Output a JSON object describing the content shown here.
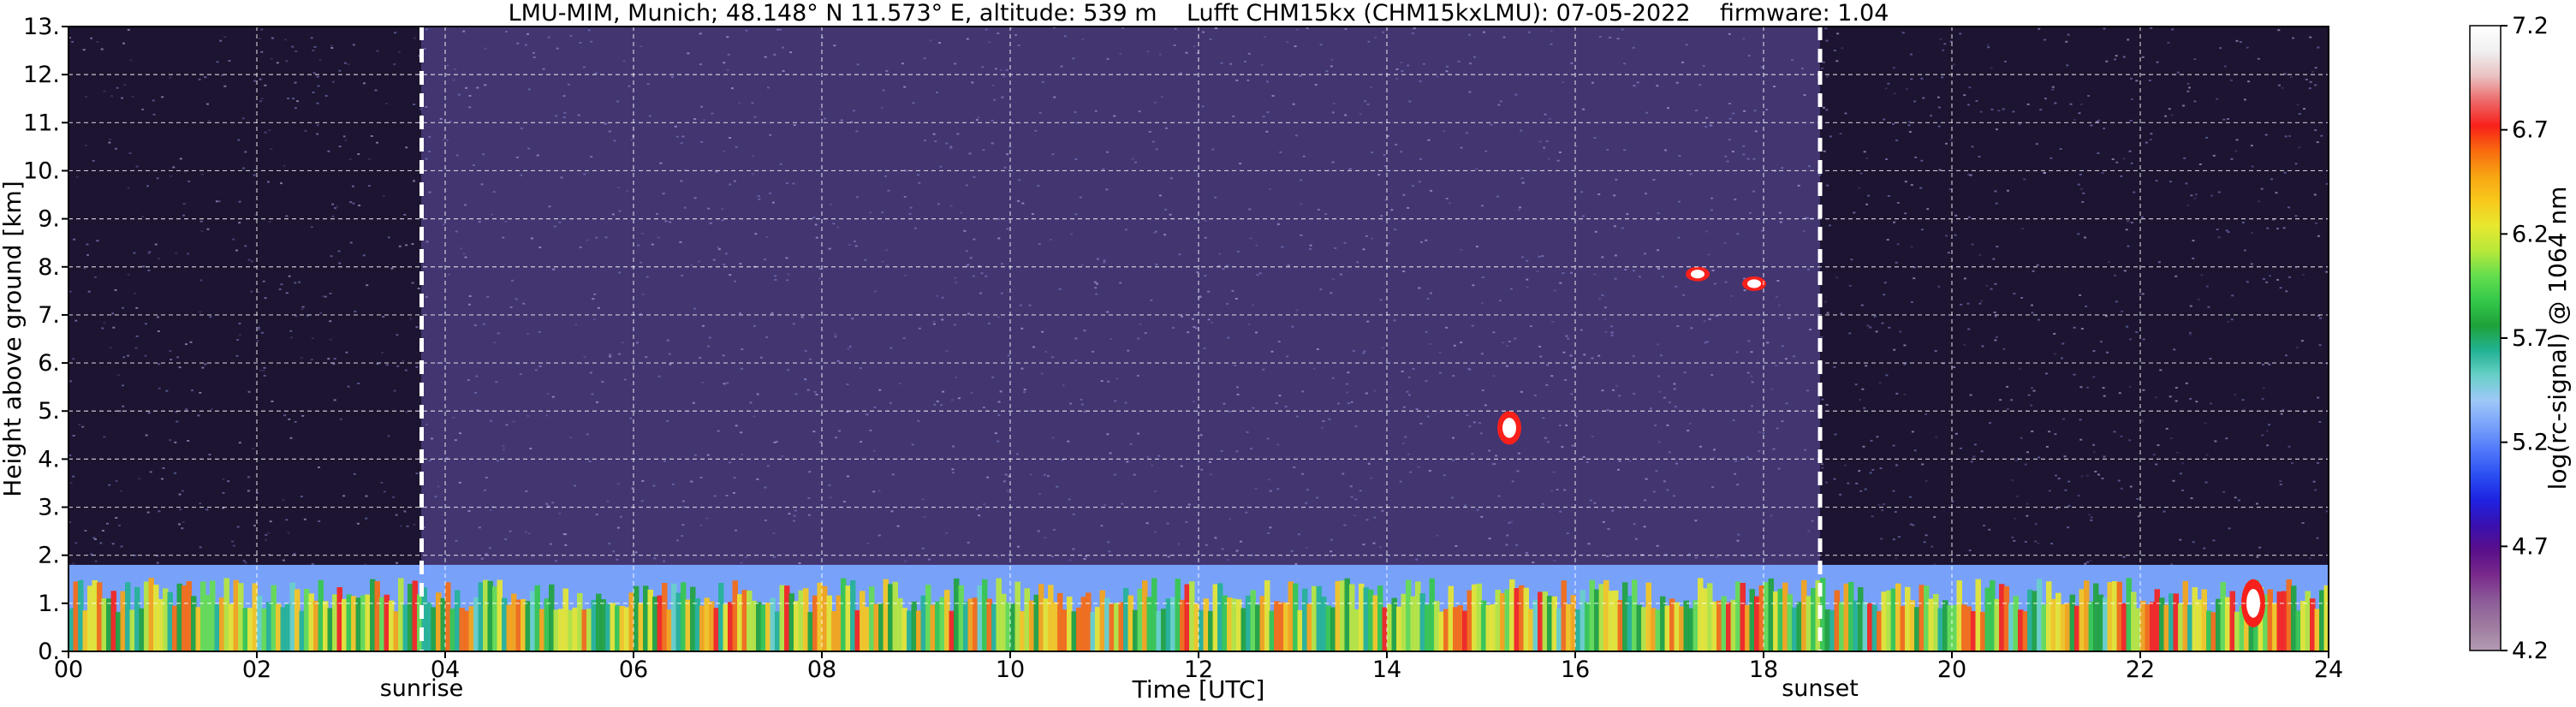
{
  "chart_data": {
    "type": "heatmap",
    "title": "LMU-MIM, Munich; 48.148° N 11.573° E, altitude: 539 m    Lufft CHM15kx (CHM15kxLMU): 07-05-2022    firmware: 1.04",
    "xlabel": "Time [UTC]",
    "ylabel": "Height above ground [km]",
    "colorbar_label": "log(rc-signal) @ 1064 nm",
    "xlim": [
      0,
      24
    ],
    "ylim": [
      0,
      13
    ],
    "x_ticks": [
      0,
      2,
      4,
      6,
      8,
      10,
      12,
      14,
      16,
      18,
      20,
      22,
      24
    ],
    "x_tick_labels": [
      "00",
      "02",
      "04",
      "06",
      "08",
      "10",
      "12",
      "14",
      "16",
      "18",
      "20",
      "22",
      "24"
    ],
    "y_ticks": [
      0,
      1,
      2,
      3,
      4,
      5,
      6,
      7,
      8,
      9,
      10,
      11,
      12,
      13
    ],
    "y_tick_labels": [
      "0.",
      "1.",
      "2.",
      "3.",
      "4.",
      "5.",
      "6.",
      "7.",
      "8.",
      "9.",
      "10.",
      "11.",
      "12.",
      "13."
    ],
    "grid": true,
    "colorbar": {
      "range": [
        4.2,
        7.2
      ],
      "ticks": [
        4.2,
        4.7,
        5.2,
        5.7,
        6.2,
        6.7,
        7.2
      ],
      "tick_labels": [
        "4.2",
        "4.7",
        "5.2",
        "5.7",
        "6.2",
        "6.7",
        "7.2"
      ],
      "colors": [
        "#b39ab3",
        "#9e7ba0",
        "#8c5b98",
        "#7a2a8c",
        "#5a0f8a",
        "#3a10b0",
        "#1e22e0",
        "#2a4ef2",
        "#4f78fa",
        "#78a2fa",
        "#9ec8f8",
        "#68d0c8",
        "#22b294",
        "#1ea23a",
        "#34c84a",
        "#64de4e",
        "#b8e83a",
        "#e8e82e",
        "#f8c81c",
        "#f8a412",
        "#f86a0e",
        "#f8201a",
        "#ec6a6a",
        "#eac2c2",
        "#f0f0f0",
        "#ffffff"
      ]
    },
    "annotations": [
      {
        "text": "sunrise",
        "x": 3.75
      },
      {
        "text": "sunset",
        "x": 18.6
      }
    ],
    "features": [
      {
        "kind": "boundary_layer",
        "from": 0,
        "to": 24,
        "top_km": 1.8
      },
      {
        "kind": "cloud",
        "x": 15.3,
        "top_km": 5.0,
        "bottom_km": 4.3
      },
      {
        "kind": "cloud",
        "x": 17.3,
        "top_km": 8.0,
        "bottom_km": 7.7
      },
      {
        "kind": "cloud",
        "x": 17.9,
        "top_km": 7.8,
        "bottom_km": 7.5
      },
      {
        "kind": "cloud",
        "x": 23.2,
        "top_km": 1.5,
        "bottom_km": 0.5
      }
    ]
  }
}
